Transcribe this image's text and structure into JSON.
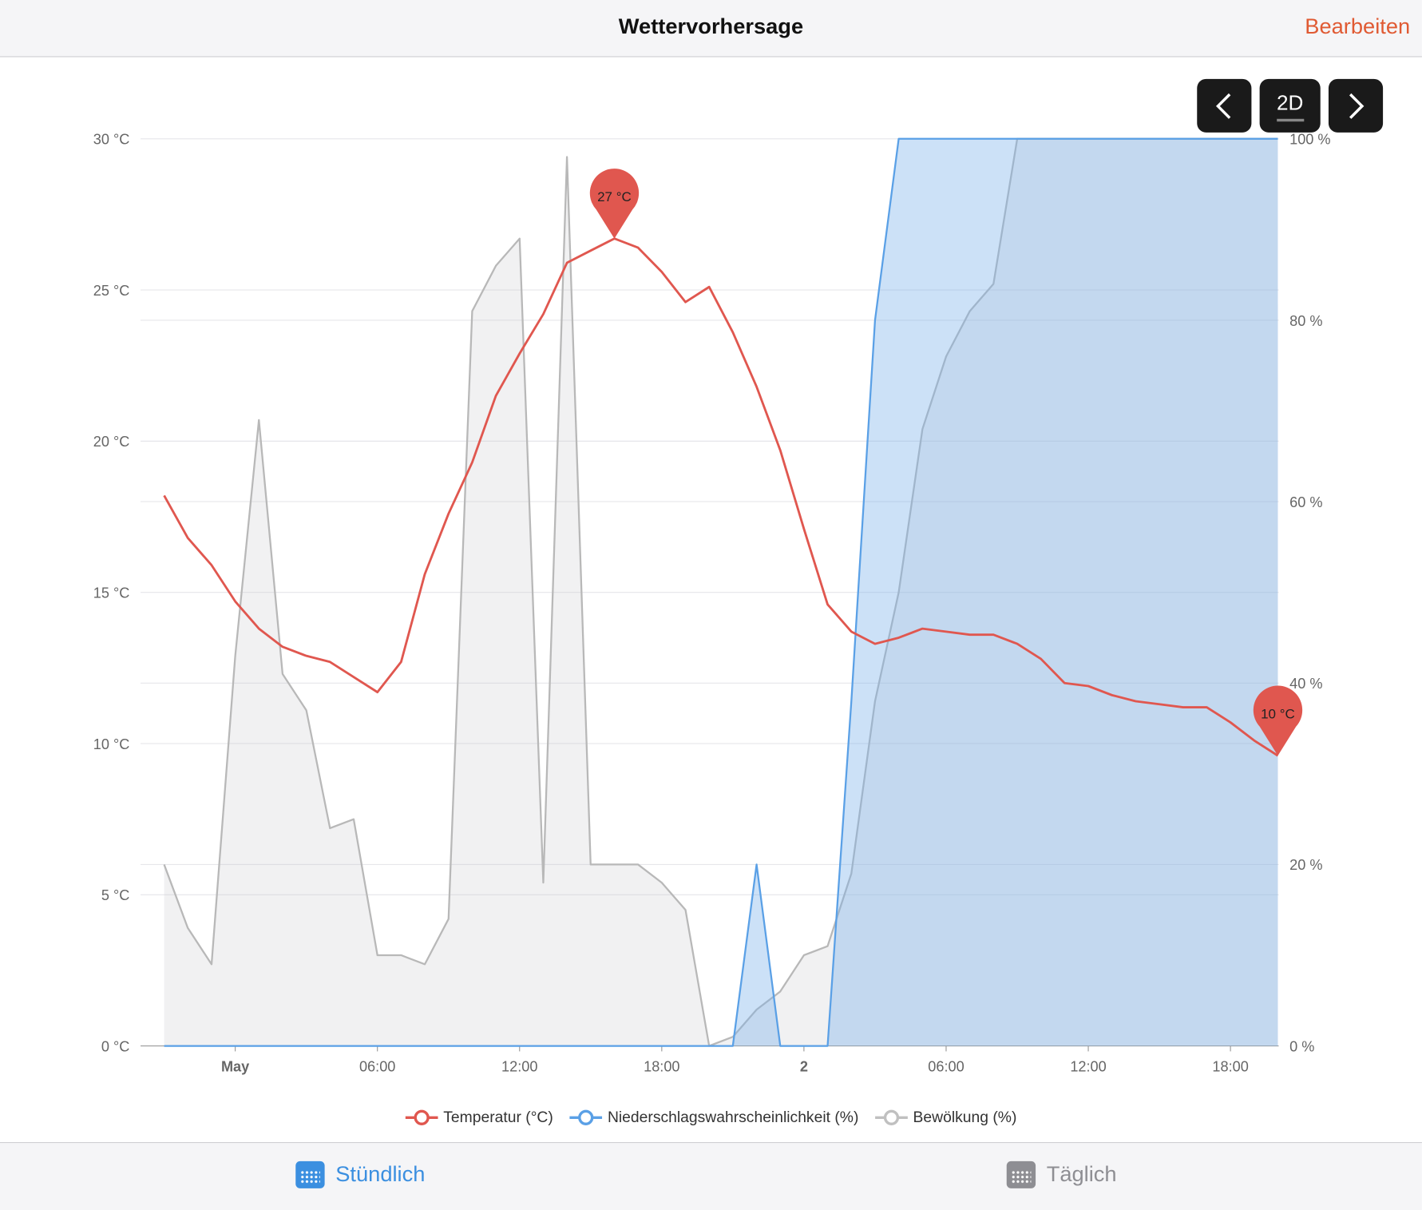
{
  "header": {
    "title": "Wettervorhersage",
    "edit_label": "Bearbeiten"
  },
  "controls": {
    "prev": "‹",
    "mode": "2D",
    "next": "›"
  },
  "legend": [
    {
      "label": "Temperatur (°C)",
      "color": "#e0574f"
    },
    {
      "label": "Niederschlagswahrscheinlichkeit (%)",
      "color": "#5aa0e6"
    },
    {
      "label": "Bewölkung (%)",
      "color": "#c0c0c0"
    }
  ],
  "footer": {
    "hourly": "Stündlich",
    "daily": "Täglich",
    "active_color": "#3b8fe0",
    "inactive_color": "#8e8e93"
  },
  "chart_data": {
    "type": "line",
    "x_start": "21:00 (30 Apr)",
    "x_step_hours": 1,
    "x_ticks": [
      {
        "h": 3,
        "label": "May",
        "bold": true
      },
      {
        "h": 9,
        "label": "06:00"
      },
      {
        "h": 15,
        "label": "12:00"
      },
      {
        "h": 21,
        "label": "18:00"
      },
      {
        "h": 27,
        "label": "2",
        "bold": true
      },
      {
        "h": 33,
        "label": "06:00"
      },
      {
        "h": 39,
        "label": "12:00"
      },
      {
        "h": 45,
        "label": "18:00"
      }
    ],
    "y_left": {
      "range": [
        0,
        30
      ],
      "ticks": [
        "0 °C",
        "5 °C",
        "10 °C",
        "15 °C",
        "20 °C",
        "25 °C",
        "30 °C"
      ]
    },
    "y_right": {
      "range": [
        0,
        100
      ],
      "ticks": [
        "0 %",
        "20 %",
        "40 %",
        "60 %",
        "80 %",
        "100 %"
      ]
    },
    "series": [
      {
        "name": "Temperatur (°C)",
        "axis": "left",
        "values": [
          18.2,
          16.8,
          15.9,
          14.7,
          13.8,
          13.2,
          12.9,
          12.7,
          12.2,
          11.7,
          12.7,
          15.6,
          17.6,
          19.3,
          21.5,
          22.9,
          24.2,
          25.9,
          26.3,
          26.7,
          26.4,
          25.6,
          24.6,
          25.1,
          23.6,
          21.8,
          19.7,
          17.1,
          14.6,
          13.7,
          13.3,
          13.5,
          13.8,
          13.7,
          13.6,
          13.6,
          13.3,
          12.8,
          12.0,
          11.9,
          11.6,
          11.4,
          11.3,
          11.2,
          11.2,
          10.7,
          10.1,
          9.6
        ]
      },
      {
        "name": "Niederschlagswahrscheinlichkeit (%)",
        "axis": "right",
        "values": [
          0,
          0,
          0,
          0,
          0,
          0,
          0,
          0,
          0,
          0,
          0,
          0,
          0,
          0,
          0,
          0,
          0,
          0,
          0,
          0,
          0,
          0,
          0,
          0,
          0,
          20,
          0,
          0,
          0,
          38,
          80,
          100,
          100,
          100,
          100,
          100,
          100,
          100,
          100,
          100,
          100,
          100,
          100,
          100,
          100,
          100,
          100,
          100
        ]
      },
      {
        "name": "Bewölkung (%)",
        "axis": "right",
        "values": [
          20,
          13,
          9,
          43,
          69,
          41,
          37,
          24,
          25,
          10,
          10,
          9,
          14,
          81,
          86,
          89,
          18,
          98,
          20,
          20,
          20,
          18,
          15,
          0,
          1,
          4,
          6,
          10,
          11,
          19,
          38,
          50,
          68,
          76,
          81,
          84,
          100,
          100,
          100,
          100,
          100,
          100,
          100,
          100,
          100,
          100,
          100,
          100
        ]
      }
    ],
    "annotations": [
      {
        "series": 0,
        "index": 19,
        "label": "27 °C"
      },
      {
        "series": 0,
        "index": 47,
        "label": "10 °C"
      }
    ]
  }
}
